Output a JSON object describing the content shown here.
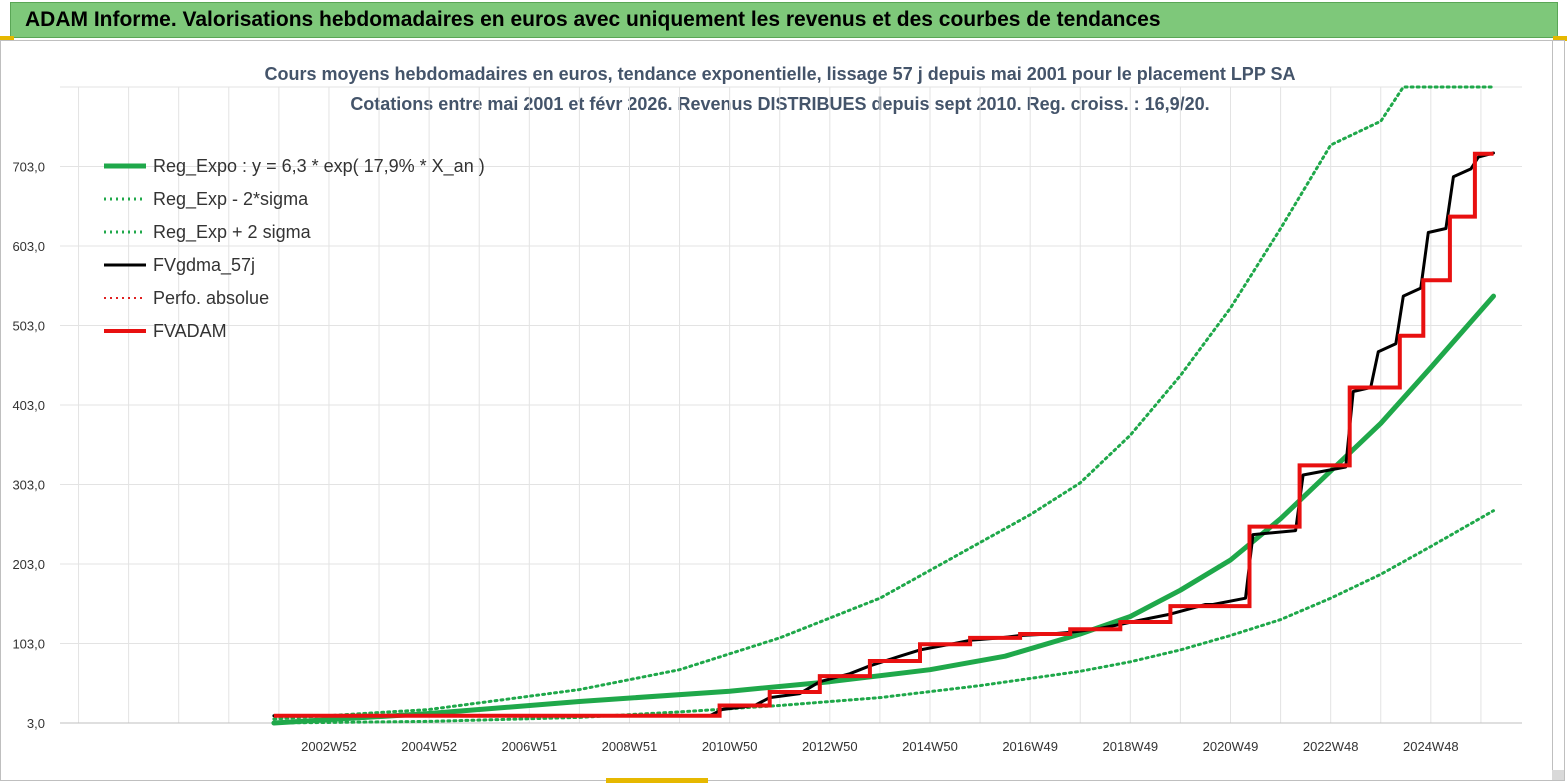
{
  "header": {
    "title": "ADAM Informe. Valorisations hebdomadaires en euros avec uniquement les revenus et des courbes de tendances"
  },
  "chart_data": {
    "type": "line",
    "title": [
      "Cours moyens hebdomadaires en euros, tendance exponentielle, lissage 57 j depuis mai 2001 pour le placement LPP SA",
      "Cotations entre mai 2001 et févr 2026. Revenus DISTRIBUES depuis sept 2010. Reg. croiss. : 16,9/20."
    ],
    "xlabel": "",
    "ylabel": "",
    "ylim": [
      3,
      803
    ],
    "xlim": [
      1997.63,
      2026.82
    ],
    "y_ticks": [
      "3,0",
      "103,0",
      "203,0",
      "303,0",
      "403,0",
      "503,0",
      "603,0",
      "703,0"
    ],
    "x_ticks": [
      {
        "label": "2002W52",
        "x": 2003.0
      },
      {
        "label": "2004W52",
        "x": 2005.0
      },
      {
        "label": "2006W51",
        "x": 2007.0
      },
      {
        "label": "2008W51",
        "x": 2009.0
      },
      {
        "label": "2010W50",
        "x": 2011.0
      },
      {
        "label": "2012W50",
        "x": 2013.0
      },
      {
        "label": "2014W50",
        "x": 2015.0
      },
      {
        "label": "2016W49",
        "x": 2017.0
      },
      {
        "label": "2018W49",
        "x": 2019.0
      },
      {
        "label": "2020W49",
        "x": 2021.0
      },
      {
        "label": "2022W48",
        "x": 2023.0
      },
      {
        "label": "2024W48",
        "x": 2025.0
      }
    ],
    "grid": true,
    "legend_position": "top-left",
    "series": [
      {
        "name": "Reg_Expo : y = 6,3 * exp( 17,9% *  X_an )",
        "color": "#1fa84a",
        "style": "solid",
        "width": 5,
        "x": [
          2001.9,
          2005.0,
          2008.0,
          2011.0,
          2013.0,
          2015.0,
          2016.5,
          2018.0,
          2019.0,
          2020.0,
          2021.0,
          2022.0,
          2023.0,
          2024.0,
          2025.0,
          2026.25
        ],
        "y": [
          3,
          15,
          30,
          43,
          55,
          70,
          87,
          115,
          137,
          170,
          208,
          260,
          320,
          380,
          450,
          540
        ]
      },
      {
        "name": "Reg_Exp - 2*sigma",
        "color": "#1fa84a",
        "style": "dotted",
        "width": 3,
        "x": [
          2001.9,
          2005.0,
          2008.0,
          2010.0,
          2012.0,
          2014.0,
          2016.0,
          2018.0,
          2019.0,
          2020.0,
          2021.0,
          2022.0,
          2023.0,
          2024.0,
          2025.0,
          2026.25
        ],
        "y": [
          3,
          5,
          10,
          17,
          25,
          35,
          50,
          68,
          80,
          95,
          113,
          133,
          160,
          190,
          225,
          270
        ]
      },
      {
        "name": "Reg_Exp + 2 sigma",
        "color": "#1fa84a",
        "style": "dotted",
        "width": 3,
        "x": [
          2001.9,
          2005.0,
          2008.0,
          2010.0,
          2012.0,
          2014.0,
          2016.0,
          2017.0,
          2018.0,
          2019.0,
          2020.0,
          2021.0,
          2022.0,
          2023.0,
          2024.0,
          2024.45,
          2026.25
        ],
        "y": [
          8,
          20,
          45,
          70,
          110,
          160,
          230,
          265,
          305,
          365,
          440,
          525,
          625,
          730,
          760,
          803,
          803
        ]
      },
      {
        "name": "FVgdma_57j",
        "color": "#000000",
        "style": "solid",
        "width": 3,
        "x": [
          2001.9,
          2010.6,
          2010.85,
          2011.5,
          2011.8,
          2012.4,
          2012.8,
          2013.4,
          2013.8,
          2014.4,
          2014.8,
          2015.4,
          2015.8,
          2016.4,
          2016.8,
          2017.4,
          2017.8,
          2018.4,
          2018.8,
          2019.4,
          2019.8,
          2020.5,
          2020.65,
          2021.3,
          2021.45,
          2022.3,
          2022.45,
          2023.3,
          2023.45,
          2023.8,
          2023.95,
          2024.3,
          2024.45,
          2024.8,
          2024.95,
          2025.3,
          2025.45,
          2025.8,
          2025.95,
          2026.25
        ],
        "y": [
          12,
          12,
          20,
          25,
          35,
          40,
          55,
          65,
          75,
          87,
          95,
          102,
          107,
          110,
          113,
          115,
          117,
          122,
          127,
          135,
          140,
          152,
          152,
          160,
          240,
          245,
          315,
          325,
          420,
          425,
          470,
          480,
          540,
          550,
          620,
          625,
          690,
          700,
          715,
          720
        ]
      },
      {
        "name": "Perfo. absolue",
        "color": "#e02020",
        "style": "dotted",
        "width": 2,
        "x": [],
        "y": []
      },
      {
        "name": "FVADAM",
        "color": "#e81010",
        "style": "step",
        "width": 4,
        "x": [
          2001.9,
          2010.8,
          2010.8,
          2011.8,
          2011.8,
          2012.8,
          2012.8,
          2013.8,
          2013.8,
          2014.8,
          2014.8,
          2015.8,
          2015.8,
          2016.8,
          2016.8,
          2017.8,
          2017.8,
          2018.8,
          2018.8,
          2019.8,
          2019.8,
          2021.38,
          2021.38,
          2022.38,
          2022.38,
          2023.38,
          2023.38,
          2024.38,
          2024.38,
          2024.85,
          2024.85,
          2025.38,
          2025.38,
          2025.88,
          2025.88,
          2026.25
        ],
        "y": [
          12,
          12,
          25,
          25,
          42,
          42,
          62,
          62,
          81,
          81,
          102,
          102,
          110,
          110,
          115,
          115,
          121,
          121,
          130,
          130,
          150,
          150,
          250,
          250,
          327,
          327,
          425,
          425,
          490,
          490,
          560,
          560,
          640,
          640,
          719,
          719
        ]
      }
    ]
  }
}
